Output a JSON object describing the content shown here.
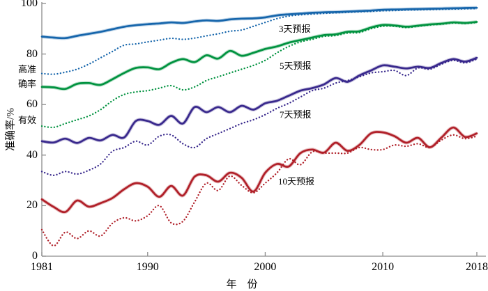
{
  "chart_data": {
    "type": "line",
    "title": "",
    "xlabel": "年　份",
    "ylabel": "准确率/%",
    "xlim": [
      1981,
      2018
    ],
    "ylim": [
      0,
      100
    ],
    "xticks": [
      1981,
      1990,
      2000,
      2010,
      2018
    ],
    "yticks": [
      0,
      20,
      40,
      60,
      80,
      100
    ],
    "grid": false,
    "legend_position": "inline-right-of-curves",
    "years": [
      1981,
      1982,
      1983,
      1984,
      1985,
      1986,
      1987,
      1988,
      1989,
      1990,
      1991,
      1992,
      1993,
      1994,
      1995,
      1996,
      1997,
      1998,
      1999,
      2000,
      2001,
      2002,
      2003,
      2004,
      2005,
      2006,
      2007,
      2008,
      2009,
      2010,
      2011,
      2012,
      2013,
      2014,
      2015,
      2016,
      2017,
      2018
    ],
    "series": [
      {
        "name": "3天预报",
        "style": "dotted",
        "color": "#1565ab",
        "values": [
          72.3,
          72.0,
          72.8,
          74.0,
          76.0,
          78.5,
          81.0,
          83.5,
          84.0,
          84.8,
          85.5,
          86.2,
          85.8,
          86.3,
          87.2,
          88.0,
          89.0,
          89.5,
          91.0,
          92.5,
          94.0,
          95.0,
          95.5,
          95.8,
          96.1,
          96.3,
          96.5,
          96.7,
          96.9,
          97.1,
          97.2,
          97.4,
          97.5,
          97.6,
          97.7,
          97.8,
          97.9,
          98.0
        ]
      },
      {
        "name": "3天预报",
        "style": "solid",
        "color": "#1565ab",
        "values": [
          86.9,
          86.5,
          86.3,
          87.2,
          88.0,
          88.8,
          89.8,
          90.8,
          91.4,
          91.8,
          92.1,
          92.5,
          92.3,
          92.9,
          93.3,
          93.1,
          93.7,
          94.0,
          94.1,
          94.5,
          95.3,
          95.7,
          96.0,
          96.3,
          96.5,
          96.6,
          96.8,
          97.0,
          97.2,
          97.5,
          97.6,
          97.7,
          97.8,
          97.9,
          98.0,
          98.1,
          98.2,
          98.3
        ]
      },
      {
        "name": "5天预报",
        "style": "dotted",
        "color": "#00923f",
        "values": [
          51.5,
          51.0,
          52.5,
          54.0,
          55.5,
          58.0,
          61.5,
          64.0,
          65.0,
          65.5,
          66.5,
          67.5,
          65.8,
          67.0,
          69.5,
          71.0,
          72.5,
          74.0,
          75.5,
          77.5,
          80.5,
          83.0,
          84.8,
          85.8,
          87.0,
          87.3,
          88.3,
          88.5,
          90.0,
          91.0,
          91.0,
          90.5,
          91.0,
          91.5,
          91.8,
          92.3,
          92.1,
          92.5
        ]
      },
      {
        "name": "5天预报",
        "style": "solid",
        "color": "#00923f",
        "values": [
          67.0,
          66.8,
          66.2,
          68.2,
          68.5,
          67.8,
          70.0,
          72.5,
          74.5,
          74.7,
          74.0,
          76.5,
          78.0,
          76.8,
          79.5,
          78.2,
          81.2,
          79.3,
          80.5,
          82.0,
          83.0,
          84.5,
          85.5,
          86.5,
          87.5,
          87.8,
          88.8,
          89.0,
          90.5,
          91.5,
          91.3,
          90.8,
          91.2,
          91.7,
          92.0,
          92.5,
          92.3,
          92.7
        ]
      },
      {
        "name": "7天预报",
        "style": "dotted",
        "color": "#38288c",
        "values": [
          33.5,
          32.0,
          33.5,
          32.5,
          34.0,
          36.5,
          41.5,
          43.0,
          45.5,
          44.0,
          47.5,
          48.0,
          44.5,
          43.0,
          46.5,
          48.5,
          50.5,
          52.5,
          54.0,
          56.0,
          58.5,
          60.5,
          63.0,
          65.5,
          66.5,
          68.5,
          69.5,
          71.0,
          72.5,
          73.0,
          73.5,
          71.5,
          74.5,
          74.0,
          76.0,
          77.5,
          76.5,
          78.0
        ]
      },
      {
        "name": "7天预报",
        "style": "solid",
        "color": "#38288c",
        "values": [
          45.5,
          45.0,
          46.5,
          44.8,
          46.8,
          45.8,
          48.0,
          47.0,
          53.5,
          53.5,
          52.0,
          55.5,
          52.5,
          59.0,
          57.0,
          59.0,
          57.0,
          59.5,
          58.0,
          60.5,
          61.5,
          63.5,
          65.5,
          66.5,
          68.0,
          70.5,
          69.0,
          71.5,
          73.5,
          75.5,
          75.0,
          74.3,
          75.0,
          74.5,
          76.5,
          78.0,
          77.0,
          78.5
        ]
      },
      {
        "name": "10天预报",
        "style": "dotted",
        "color": "#b01f28",
        "values": [
          10.5,
          4.1,
          9.5,
          7.0,
          10.0,
          8.0,
          13.0,
          15.2,
          14.0,
          16.0,
          20.0,
          13.2,
          13.8,
          21.5,
          28.9,
          26.0,
          31.7,
          28.0,
          25.1,
          28.9,
          33.0,
          38.5,
          36.2,
          41.3,
          40.8,
          40.8,
          40.8,
          43.0,
          42.2,
          42.2,
          44.0,
          43.5,
          44.5,
          43.0,
          46.0,
          48.0,
          46.5,
          47.5
        ]
      },
      {
        "name": "10天预报",
        "style": "solid",
        "color": "#b01f28",
        "values": [
          22.5,
          19.5,
          17.5,
          22.0,
          19.6,
          21.0,
          23.0,
          26.5,
          28.9,
          27.5,
          23.5,
          27.8,
          24.0,
          31.5,
          32.0,
          29.5,
          33.0,
          31.0,
          25.6,
          33.0,
          36.5,
          35.5,
          40.8,
          42.2,
          41.0,
          44.9,
          41.7,
          44.0,
          48.6,
          49.0,
          47.5,
          44.9,
          46.8,
          43.1,
          47.0,
          50.9,
          47.2,
          48.6
        ]
      }
    ],
    "series_labels": [
      {
        "text": "3天预报"
      },
      {
        "text": "5天预报"
      },
      {
        "text": "7天预报"
      },
      {
        "text": "10天预报"
      }
    ],
    "annotations": {
      "high_accuracy": [
        "高准",
        "确率"
      ],
      "valid": "有效"
    },
    "axis_color": "#8c8c8c",
    "text_color": "#000000"
  }
}
